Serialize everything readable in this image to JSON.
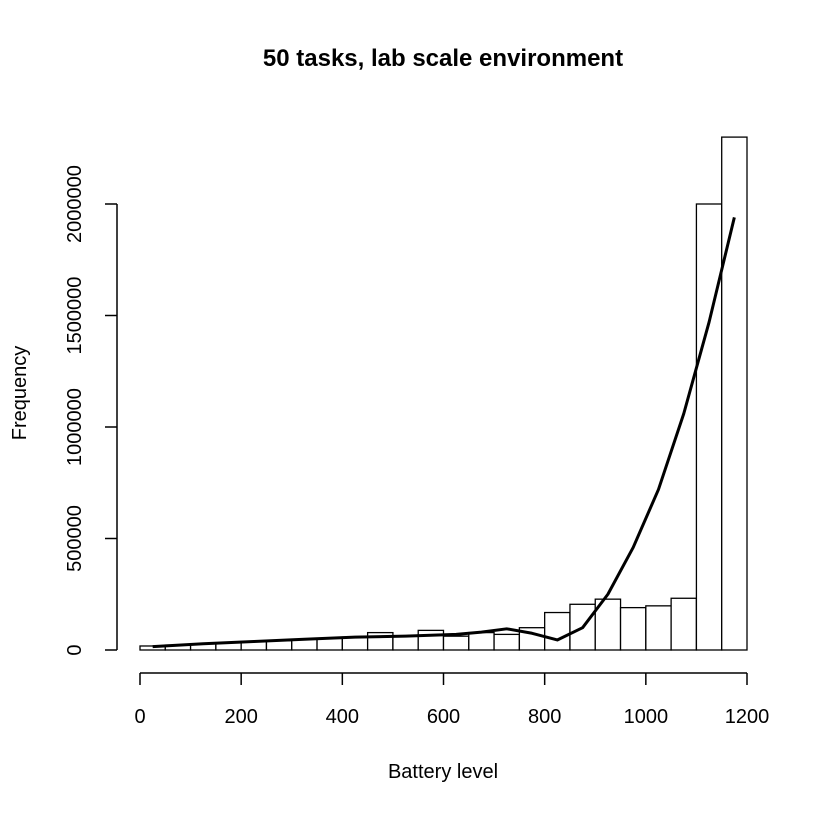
{
  "chart_data": {
    "type": "bar",
    "subtype": "histogram",
    "title": "50 tasks, lab scale environment",
    "xlabel": "Battery level",
    "ylabel": "Frequency",
    "xlim": [
      0,
      1200
    ],
    "ylim": [
      0,
      2300000
    ],
    "x_ticks": [
      0,
      200,
      400,
      600,
      800,
      1000,
      1200
    ],
    "y_ticks": [
      0,
      500000,
      1000000,
      1500000,
      2000000
    ],
    "y_tick_labels": [
      "0",
      "500000",
      "1000000",
      "1500000",
      "2000000"
    ],
    "bin_width": 50,
    "bins": [
      {
        "start": 0,
        "end": 50,
        "count": 18000
      },
      {
        "start": 50,
        "end": 100,
        "count": 22000
      },
      {
        "start": 100,
        "end": 150,
        "count": 28000
      },
      {
        "start": 150,
        "end": 200,
        "count": 32000
      },
      {
        "start": 200,
        "end": 250,
        "count": 38000
      },
      {
        "start": 250,
        "end": 300,
        "count": 42000
      },
      {
        "start": 300,
        "end": 350,
        "count": 48000
      },
      {
        "start": 350,
        "end": 400,
        "count": 52000
      },
      {
        "start": 400,
        "end": 450,
        "count": 58000
      },
      {
        "start": 450,
        "end": 500,
        "count": 78000
      },
      {
        "start": 500,
        "end": 550,
        "count": 62000
      },
      {
        "start": 550,
        "end": 600,
        "count": 88000
      },
      {
        "start": 600,
        "end": 650,
        "count": 62000
      },
      {
        "start": 650,
        "end": 700,
        "count": 78000
      },
      {
        "start": 700,
        "end": 750,
        "count": 70000
      },
      {
        "start": 750,
        "end": 800,
        "count": 100000
      },
      {
        "start": 800,
        "end": 850,
        "count": 168000
      },
      {
        "start": 850,
        "end": 900,
        "count": 205000
      },
      {
        "start": 900,
        "end": 950,
        "count": 228000
      },
      {
        "start": 950,
        "end": 1000,
        "count": 190000
      },
      {
        "start": 1000,
        "end": 1050,
        "count": 198000
      },
      {
        "start": 1050,
        "end": 1100,
        "count": 232000
      },
      {
        "start": 1100,
        "end": 1150,
        "count": 2000000
      },
      {
        "start": 1150,
        "end": 1200,
        "count": 2300000
      }
    ],
    "overlay_line": {
      "x": [
        25,
        125,
        225,
        325,
        425,
        525,
        625,
        675,
        725,
        775,
        825,
        875,
        925,
        975,
        1025,
        1075,
        1125,
        1175
      ],
      "y": [
        15000,
        28000,
        38000,
        48000,
        58000,
        62000,
        70000,
        80000,
        95000,
        75000,
        45000,
        100000,
        250000,
        460000,
        720000,
        1060000,
        1470000,
        1940000
      ]
    },
    "grid": false,
    "legend": "none"
  }
}
